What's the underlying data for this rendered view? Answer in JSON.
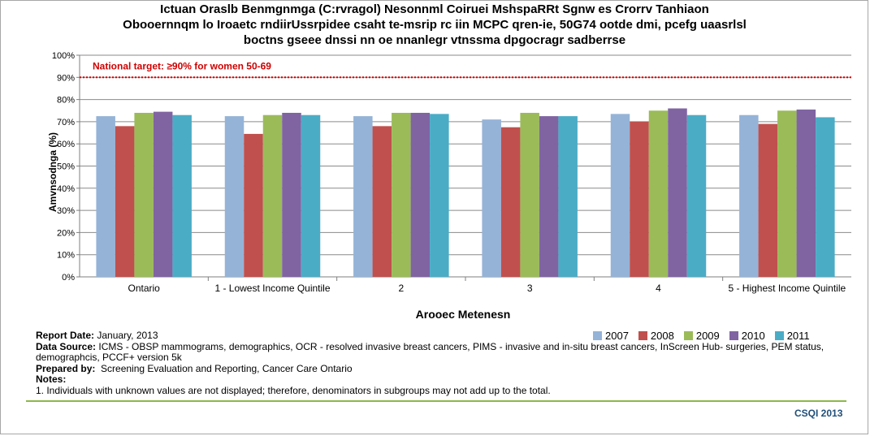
{
  "title_lines": [
    "Ictuan Oraslb Benmgnmga (C:rvragol) Nesonnml Coiruei MshspaRRt Sgnw es Crorrv Tanhiaon",
    "Obooernnqm lo Iroaetc rndiirUssrpidee csaht te-msrip rc iin MCPC qren-ie, 50G74 ootde dmi, pcefg uaasrlsl",
    "boctns gseee dnssi nn oe nnanlegr vtnssma dpgocragr sadberrse"
  ],
  "chart_data": {
    "type": "bar",
    "title": "Ictuan Oraslb Benmgnmga (C:rvragol) Nesonnml Coiruei MshspaRRt Sgnw es Crorrv Tanhiaon Obooernnqm lo Iroaetc rndiirUssrpidee csaht te-msrip rc iin MCPC qren-ie, 50G74 ootde dmi, pcefg uaasrlsl boctns gseee dnssi nn oe nnanlegr vtnssma dpgocragr sadberrse",
    "xlabel": "Arooec Metenesn",
    "ylabel": "Amvnsodnga (%)",
    "ylim": [
      0,
      100
    ],
    "yticks": [
      "0%",
      "10%",
      "20%",
      "30%",
      "40%",
      "50%",
      "60%",
      "70%",
      "80%",
      "90%",
      "100%"
    ],
    "grid": true,
    "legend_position": "bottom-right",
    "categories": [
      "Ontario",
      "1 - Lowest Income Quintile",
      "2",
      "3",
      "4",
      "5 - Highest Income Quintile"
    ],
    "series": [
      {
        "name": "2007",
        "color": "#95b3d7",
        "values": [
          72.5,
          72.5,
          72.5,
          71,
          73.5,
          73
        ]
      },
      {
        "name": "2008",
        "color": "#c0504d",
        "values": [
          68,
          64.5,
          68,
          67.5,
          70,
          69
        ]
      },
      {
        "name": "2009",
        "color": "#9bbb59",
        "values": [
          74,
          73,
          74,
          74,
          75,
          75
        ]
      },
      {
        "name": "2010",
        "color": "#8064a2",
        "values": [
          74.5,
          74,
          74,
          72.5,
          76,
          75.5
        ]
      },
      {
        "name": "2011",
        "color": "#4bacc6",
        "values": [
          73,
          73,
          73.5,
          72.5,
          73,
          72
        ]
      }
    ],
    "target": {
      "label": "National target: ≥90% for women 50-69",
      "value": 90,
      "color": "#d00000"
    }
  },
  "notes": {
    "report_date_label": "Report Date:",
    "report_date": "January, 2013",
    "data_source_label": "Data Source:",
    "data_source_line1": "ICMS - OBSP mammograms, demographics, OCR - resolved invasive breast cancers, PIMS - invasive and in-situ breast cancers,  InScreen Hub- surgeries, PEM status,",
    "data_source_line2": "demographcis, PCCF+ version 5k",
    "prepared_by_label": "Prepared by:",
    "prepared_by": "Screening Evaluation and Reporting, Cancer Care Ontario",
    "notes_label": "Notes:",
    "note1": "1. Individuals with unknown values are not displayed; therefore, denominators in subgroups may not add up to the total."
  },
  "credit": "CSQI 2013"
}
